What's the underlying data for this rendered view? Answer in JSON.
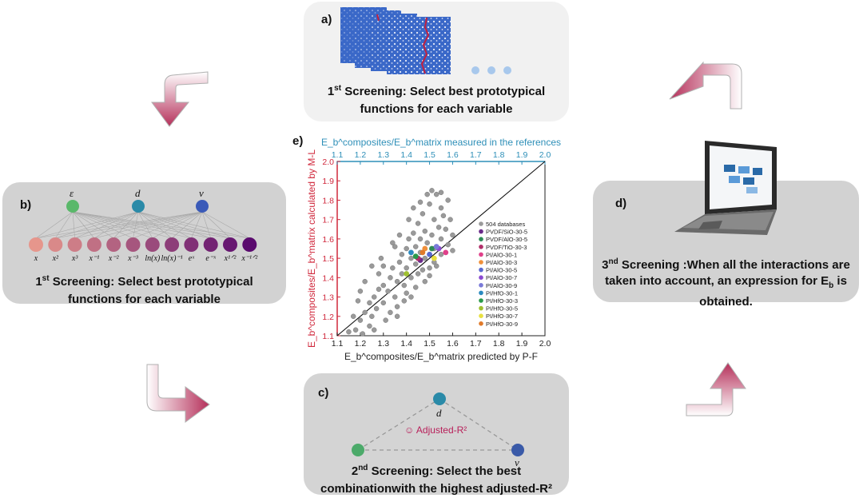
{
  "panel_a": {
    "label": "a)",
    "line1_num": "1",
    "line1_sup": "st",
    "line1_rest": " Screening: Select best prototypical",
    "line2": "functions for each variable"
  },
  "panel_b": {
    "label": "b)",
    "variables": [
      "ε",
      "d",
      "v"
    ],
    "functions": [
      "x",
      "x²",
      "x³",
      "x⁻¹",
      "x⁻²",
      "x⁻³",
      "ln(x)",
      "ln(x)⁻¹",
      "eˣ",
      "e⁻ˣ",
      "x¹ᐟ²",
      "x⁻¹ᐟ²"
    ],
    "line1_num": "1",
    "line1_sup": "st",
    "line1_rest": " Screening: Select best prototypical",
    "line2": "functions for each variable"
  },
  "panel_c": {
    "label": "c)",
    "node_top": "d",
    "node_right": "v",
    "center_label": "☺  Adjusted-R²",
    "line1_num": "2",
    "line1_sup": "nd",
    "line1_rest": " Screening: Select the best",
    "line2": "combinationwith the highest adjusted-R²"
  },
  "panel_d": {
    "label": "d)",
    "line1_num": "3",
    "line1_sup": "nd",
    "line1_rest": " Screening :When all the interactions are",
    "line2": "taken into account, an expression for E",
    "line2_sub": "b",
    "line2_end": " is",
    "line3": "obtained."
  },
  "colors": {
    "accent_red": "#d0283c",
    "accent_blue": "#2e8fb8",
    "arrow": "#b5305a"
  },
  "chart_data": {
    "label": "e)",
    "type": "scatter",
    "x_top_label": "E_b^composites/E_b^matrix measured in the references",
    "x_bottom_label": "E_b^composites/E_b^matrix predicted by P-F",
    "y_label": "E_b^composites/E_b^matrix calculated by M-L",
    "xlim": [
      1.1,
      2.0
    ],
    "ylim": [
      1.1,
      2.0
    ],
    "ticks": [
      "1.1",
      "1.2",
      "1.3",
      "1.4",
      "1.5",
      "1.6",
      "1.7",
      "1.8",
      "1.9",
      "2.0"
    ],
    "grid": false,
    "diagonal_line": true,
    "legend_position": "lower-right",
    "series": [
      {
        "name": "504 databases",
        "color": "#9a9a9a",
        "points": [
          [
            1.18,
            1.13
          ],
          [
            1.2,
            1.18
          ],
          [
            1.22,
            1.22
          ],
          [
            1.21,
            1.11
          ],
          [
            1.24,
            1.15
          ],
          [
            1.25,
            1.2
          ],
          [
            1.27,
            1.24
          ],
          [
            1.26,
            1.3
          ],
          [
            1.28,
            1.34
          ],
          [
            1.3,
            1.27
          ],
          [
            1.3,
            1.36
          ],
          [
            1.32,
            1.33
          ],
          [
            1.33,
            1.4
          ],
          [
            1.34,
            1.45
          ],
          [
            1.35,
            1.3
          ],
          [
            1.36,
            1.38
          ],
          [
            1.37,
            1.48
          ],
          [
            1.38,
            1.42
          ],
          [
            1.38,
            1.52
          ],
          [
            1.39,
            1.36
          ],
          [
            1.4,
            1.45
          ],
          [
            1.4,
            1.55
          ],
          [
            1.41,
            1.6
          ],
          [
            1.42,
            1.4
          ],
          [
            1.42,
            1.5
          ],
          [
            1.43,
            1.63
          ],
          [
            1.44,
            1.47
          ],
          [
            1.44,
            1.56
          ],
          [
            1.45,
            1.68
          ],
          [
            1.45,
            1.42
          ],
          [
            1.46,
            1.53
          ],
          [
            1.46,
            1.6
          ],
          [
            1.47,
            1.73
          ],
          [
            1.48,
            1.5
          ],
          [
            1.48,
            1.64
          ],
          [
            1.49,
            1.58
          ],
          [
            1.5,
            1.78
          ],
          [
            1.5,
            1.45
          ],
          [
            1.51,
            1.62
          ],
          [
            1.52,
            1.7
          ],
          [
            1.52,
            1.55
          ],
          [
            1.53,
            1.83
          ],
          [
            1.54,
            1.66
          ],
          [
            1.55,
            1.6
          ],
          [
            1.55,
            1.76
          ],
          [
            1.56,
            1.72
          ],
          [
            1.57,
            1.65
          ],
          [
            1.58,
            1.8
          ],
          [
            1.59,
            1.7
          ],
          [
            1.6,
            1.62
          ],
          [
            1.35,
            1.56
          ],
          [
            1.3,
            1.46
          ],
          [
            1.28,
            1.42
          ],
          [
            1.25,
            1.46
          ],
          [
            1.22,
            1.38
          ],
          [
            1.2,
            1.33
          ],
          [
            1.19,
            1.28
          ],
          [
            1.17,
            1.2
          ],
          [
            1.15,
            1.12
          ],
          [
            1.33,
            1.22
          ],
          [
            1.36,
            1.25
          ],
          [
            1.4,
            1.32
          ],
          [
            1.44,
            1.35
          ],
          [
            1.48,
            1.38
          ],
          [
            1.5,
            1.41
          ],
          [
            1.53,
            1.46
          ],
          [
            1.41,
            1.7
          ],
          [
            1.43,
            1.76
          ],
          [
            1.46,
            1.79
          ],
          [
            1.49,
            1.83
          ],
          [
            1.51,
            1.85
          ],
          [
            1.55,
            1.84
          ],
          [
            1.47,
            1.44
          ],
          [
            1.39,
            1.28
          ],
          [
            1.31,
            1.18
          ],
          [
            1.26,
            1.13
          ],
          [
            1.24,
            1.27
          ],
          [
            1.29,
            1.5
          ],
          [
            1.34,
            1.58
          ],
          [
            1.37,
            1.62
          ],
          [
            1.55,
            1.52
          ],
          [
            1.58,
            1.57
          ],
          [
            1.6,
            1.54
          ],
          [
            1.52,
            1.48
          ],
          [
            1.42,
            1.3
          ],
          [
            1.36,
            1.2
          ]
        ]
      },
      {
        "name": "PVDF/SiO-30-5",
        "color": "#6a2a8a",
        "points": [
          [
            1.46,
            1.49
          ]
        ]
      },
      {
        "name": "PVDF/AlO-30-5",
        "color": "#2e8b57",
        "points": [
          [
            1.51,
            1.55
          ]
        ]
      },
      {
        "name": "PVDF/TiO-30-3",
        "color": "#b0306a",
        "points": [
          [
            1.45,
            1.5
          ]
        ]
      },
      {
        "name": "PI/AlO-30-1",
        "color": "#e0408a",
        "points": [
          [
            1.57,
            1.53
          ]
        ]
      },
      {
        "name": "PI/AlO-30-3",
        "color": "#f0903a",
        "points": [
          [
            1.48,
            1.55
          ]
        ]
      },
      {
        "name": "PI/AlO-30-5",
        "color": "#5a6ad0",
        "points": [
          [
            1.5,
            1.52
          ]
        ]
      },
      {
        "name": "PI/AlO-30-7",
        "color": "#8a4ad0",
        "points": [
          [
            1.54,
            1.55
          ]
        ]
      },
      {
        "name": "PI/AlO-30-9",
        "color": "#7a7ad8",
        "points": [
          [
            1.53,
            1.56
          ]
        ]
      },
      {
        "name": "PI/HfO-30-1",
        "color": "#2a8ac0",
        "points": [
          [
            1.42,
            1.53
          ]
        ]
      },
      {
        "name": "PI/HfO-30-3",
        "color": "#2a9a4a",
        "points": [
          [
            1.44,
            1.51
          ]
        ]
      },
      {
        "name": "PI/HfO-30-5",
        "color": "#a0c030",
        "points": [
          [
            1.4,
            1.42
          ]
        ]
      },
      {
        "name": "PI/HfO-30-7",
        "color": "#e8e040",
        "points": [
          [
            1.52,
            1.5
          ]
        ]
      },
      {
        "name": "PI/HfO-30-9",
        "color": "#e07a2a",
        "points": [
          [
            1.47,
            1.53
          ]
        ]
      }
    ]
  }
}
